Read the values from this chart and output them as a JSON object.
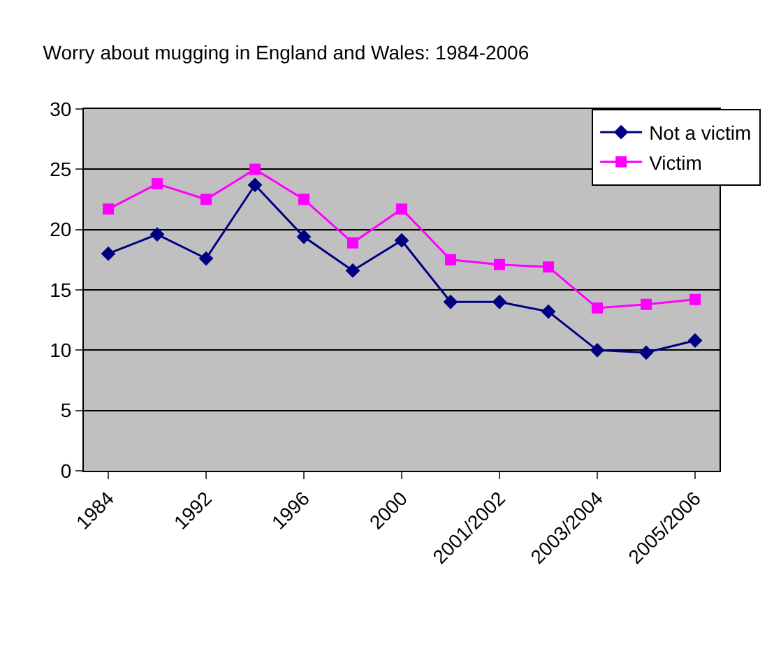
{
  "chart_data": {
    "type": "line",
    "title": "Worry about mugging in England and Wales: 1984-2006",
    "categories": [
      "1984",
      null,
      "1992",
      null,
      "1996",
      null,
      "2000",
      null,
      "2001/2002",
      null,
      "2003/2004",
      null,
      "2005/2006"
    ],
    "series": [
      {
        "name": "Not a victim",
        "color": "#000080",
        "marker": "diamond",
        "values": [
          18,
          19.6,
          17.6,
          23.7,
          19.4,
          16.6,
          19.1,
          14,
          14,
          13.2,
          10,
          9.8,
          10.8
        ]
      },
      {
        "name": "Victim",
        "color": "#ff00ff",
        "marker": "square",
        "values": [
          21.7,
          23.8,
          22.5,
          25,
          22.5,
          18.9,
          21.7,
          17.5,
          17.1,
          16.9,
          13.5,
          13.8,
          14.2
        ]
      }
    ],
    "ylim": [
      0,
      30
    ],
    "yticks": [
      0,
      5,
      10,
      15,
      20,
      25,
      30
    ],
    "grid": "y",
    "legend": "top right",
    "line_style": "solid"
  }
}
